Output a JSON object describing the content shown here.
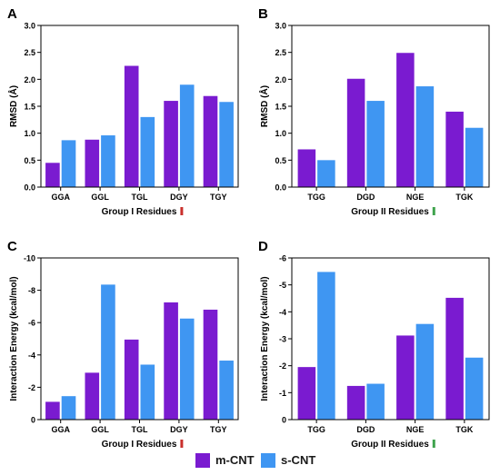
{
  "colors": {
    "m_cnt": "#7a1bd0",
    "s_cnt": "#3f96f2",
    "marker_red": "#c9302c",
    "marker_green": "#3fa34d"
  },
  "legend": {
    "m_cnt": "m-CNT",
    "s_cnt": "s-CNT"
  },
  "chart_data": [
    {
      "panel": "A",
      "type": "bar",
      "categories": [
        "GGA",
        "GGL",
        "TGL",
        "DGY",
        "TGY"
      ],
      "series": [
        {
          "name": "m-CNT",
          "values": [
            0.45,
            0.88,
            2.25,
            1.6,
            1.69
          ]
        },
        {
          "name": "s-CNT",
          "values": [
            0.87,
            0.96,
            1.3,
            1.9,
            1.58
          ]
        }
      ],
      "xlabel": "Group I Residues",
      "xlabel_marker": "red",
      "ylabel": "RMSD (Å)",
      "ylim": [
        0,
        3.0
      ],
      "yticks": [
        "0.0",
        "0.5",
        "1.0",
        "1.5",
        "2.0",
        "2.5",
        "3.0"
      ],
      "reversed": false,
      "grid": false
    },
    {
      "panel": "B",
      "type": "bar",
      "categories": [
        "TGG",
        "DGD",
        "NGE",
        "TGK"
      ],
      "series": [
        {
          "name": "m-CNT",
          "values": [
            0.7,
            2.01,
            2.49,
            1.4
          ]
        },
        {
          "name": "s-CNT",
          "values": [
            0.5,
            1.6,
            1.87,
            1.1
          ]
        }
      ],
      "xlabel": "Group II Residues",
      "xlabel_marker": "green",
      "ylabel": "RMSD (Å)",
      "ylim": [
        0,
        3.0
      ],
      "yticks": [
        "0.0",
        "0.5",
        "1.0",
        "1.5",
        "2.0",
        "2.5",
        "3.0"
      ],
      "reversed": false,
      "grid": false
    },
    {
      "panel": "C",
      "type": "bar",
      "categories": [
        "GGA",
        "GGL",
        "TGL",
        "DGY",
        "TGY"
      ],
      "series": [
        {
          "name": "m-CNT",
          "values": [
            -1.1,
            -2.9,
            -4.95,
            -7.25,
            -6.8
          ]
        },
        {
          "name": "s-CNT",
          "values": [
            -1.45,
            -8.35,
            -3.4,
            -6.25,
            -3.65
          ]
        }
      ],
      "xlabel": "Group I Residues",
      "xlabel_marker": "red",
      "ylabel": "Interaction Energy (kcal/mol)",
      "ylim": [
        0,
        -10
      ],
      "yticks": [
        "0",
        "-2",
        "-4",
        "-6",
        "-8",
        "-10"
      ],
      "reversed": true,
      "grid": false
    },
    {
      "panel": "D",
      "type": "bar",
      "categories": [
        "TGG",
        "DGD",
        "NGE",
        "TGK"
      ],
      "series": [
        {
          "name": "m-CNT",
          "values": [
            -1.95,
            -1.25,
            -3.12,
            -4.52
          ]
        },
        {
          "name": "s-CNT",
          "values": [
            -5.48,
            -1.33,
            -3.55,
            -2.3
          ]
        }
      ],
      "xlabel": "Group II Residues",
      "xlabel_marker": "green",
      "ylabel": "Interaction Energy (kcal/mol)",
      "ylim": [
        0,
        -6
      ],
      "yticks": [
        "0",
        "-1",
        "-2",
        "-3",
        "-4",
        "-5",
        "-6"
      ],
      "reversed": true,
      "grid": false
    }
  ]
}
